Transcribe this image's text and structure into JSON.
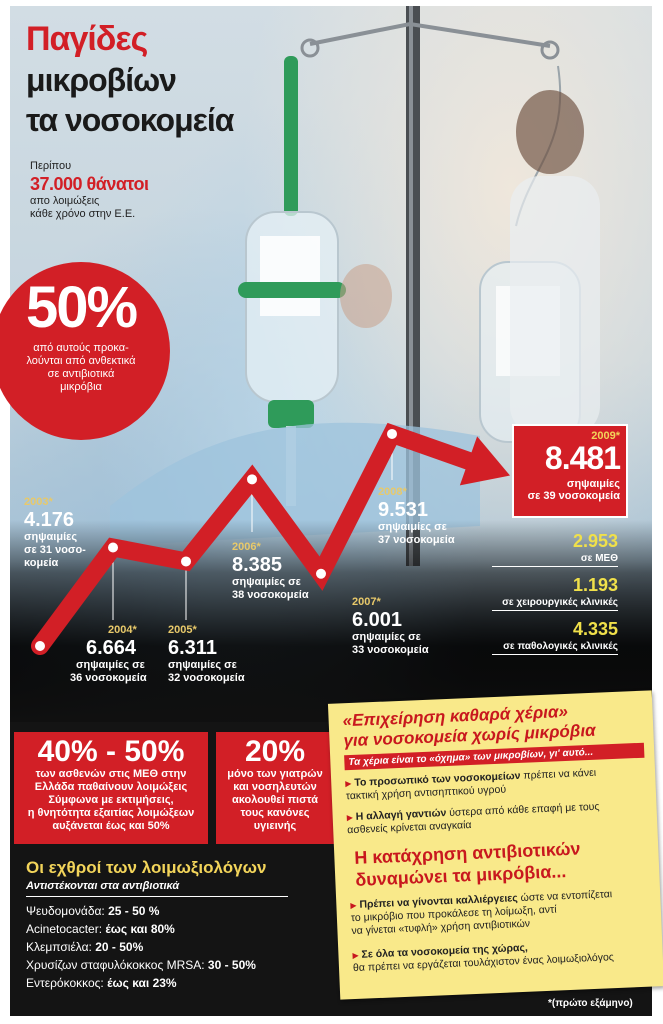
{
  "title": {
    "line1": "Παγίδες",
    "line2": "μικροβίων",
    "line3": "τα νοσοκομεία"
  },
  "deaths": {
    "about": "Περίπου",
    "value": "37.000 θάνατοι",
    "line1": "απο λοιμώξεις",
    "line2": "κάθε χρόνο στην Ε.Ε."
  },
  "fifty": {
    "value": "50%",
    "line1": "από αυτούς προκα-",
    "line2": "λούνται από ανθεκτικά",
    "line3": "σε αντιβιοτικά",
    "line4": "μικρόβια"
  },
  "chart_data": {
    "type": "line",
    "x": [
      "2003*",
      "2004*",
      "2005*",
      "2006*",
      "2007*",
      "2008*",
      "2009*"
    ],
    "values": [
      4176,
      6664,
      6311,
      8385,
      6001,
      9531,
      8481
    ],
    "value_labels": [
      "4.176",
      "6.664",
      "6.311",
      "8.385",
      "6.001",
      "9.531",
      "8.481"
    ],
    "unit_line": [
      "σηψαιμίες",
      "σηψαιμίες σε",
      "σηψαιμίες σε",
      "σηψαιμίες σε",
      "σηψαιμίες σε",
      "σηψαιμίες σε",
      "σηψαιμίες"
    ],
    "hospital_line": [
      "σε 31 νοσο-",
      "36 νοσοκομεία",
      "32 νοσοκομεία",
      "38 νοσοκομεία",
      "33 νοσοκομεία",
      "37 νοσοκομεία",
      "σε 39 νοσοκομεία"
    ],
    "hospital_line2_2003": "κομεία",
    "color": "#d21f26"
  },
  "breakdown": [
    {
      "value": "2.953",
      "label": "σε ΜΕΘ"
    },
    {
      "value": "1.193",
      "label": "σε χειρουργικές κλινικές"
    },
    {
      "value": "4.335",
      "label": "σε παθολογικές κλινικές"
    }
  ],
  "box40": {
    "value": "40% - 50%",
    "lines": [
      "των ασθενών στις ΜΕΘ στην",
      "Ελλάδα παθαίνουν λοιμώξεις",
      "Σύμφωνα με εκτιμήσεις,",
      "η θνητότητα εξαιτίας λοιμώξεων",
      "αυξάνεται έως και 50%"
    ]
  },
  "box20": {
    "value": "20%",
    "lines": [
      "μόνο των γιατρών",
      "και νοσηλευτών",
      "ακολουθεί πιστά",
      "τους κανόνες",
      "υγιεινής"
    ]
  },
  "enemies": {
    "title": "Οι εχθροί των λοιμωξιολόγων",
    "subtitle": "Αντιστέκονται στα αντιβιοτικά",
    "items": [
      {
        "name": "Ψευδομονάδα: ",
        "value": "25 - 50 %"
      },
      {
        "name": "Acinetocacter: ",
        "value": "έως και 80%"
      },
      {
        "name": "Κλεμπσιέλα: ",
        "value": "20 - 50%"
      },
      {
        "name": "Χρυσίζων σταφυλόκοκκος MRSA: ",
        "value": "30 - 50%"
      },
      {
        "name": "Εντερόκοκκος: ",
        "value": "έως και 23%"
      }
    ]
  },
  "note": {
    "h1a": "«Επιχείρηση καθαρά χέρια»",
    "h1b": "για νοσοκομεία χωρίς μικρόβια",
    "sub": "Τα χέρια είναι το «όχημα» των μικροβίων, γι' αυτό...",
    "i1b": "Το προσωπικό των νοσοκομείων",
    "i1r": " πρέπει να κάνει",
    "i1c": "τακτική χρήση αντισηπτικού υγρού",
    "i2b": "Η αλλαγή γαντιών",
    "i2r": " ύστερα από κάθε επαφή με τους",
    "i2c": "ασθενείς κρίνεται αναγκαία",
    "h2a": "Η κατάχρηση αντιβιοτικών",
    "h2b": "δυναμώνει τα μικρόβια...",
    "i3b": "Πρέπει να γίνονται καλλιέργειες",
    "i3r": " ώστε να εντοπίζεται",
    "i3c": "το μικρόβιο που προκάλεσε τη λοίμωξη, αντί",
    "i3d": "να γίνεται «τυφλή» χρήση αντιβιοτικών",
    "i4b": "Σε όλα τα νοσοκομεία της χώρας,",
    "i4c": "θα πρέπει να εργάζεται τουλάχιστον ένας λοιμωξιολόγος"
  },
  "footnote": "*(πρώτο εξάμηνο)"
}
